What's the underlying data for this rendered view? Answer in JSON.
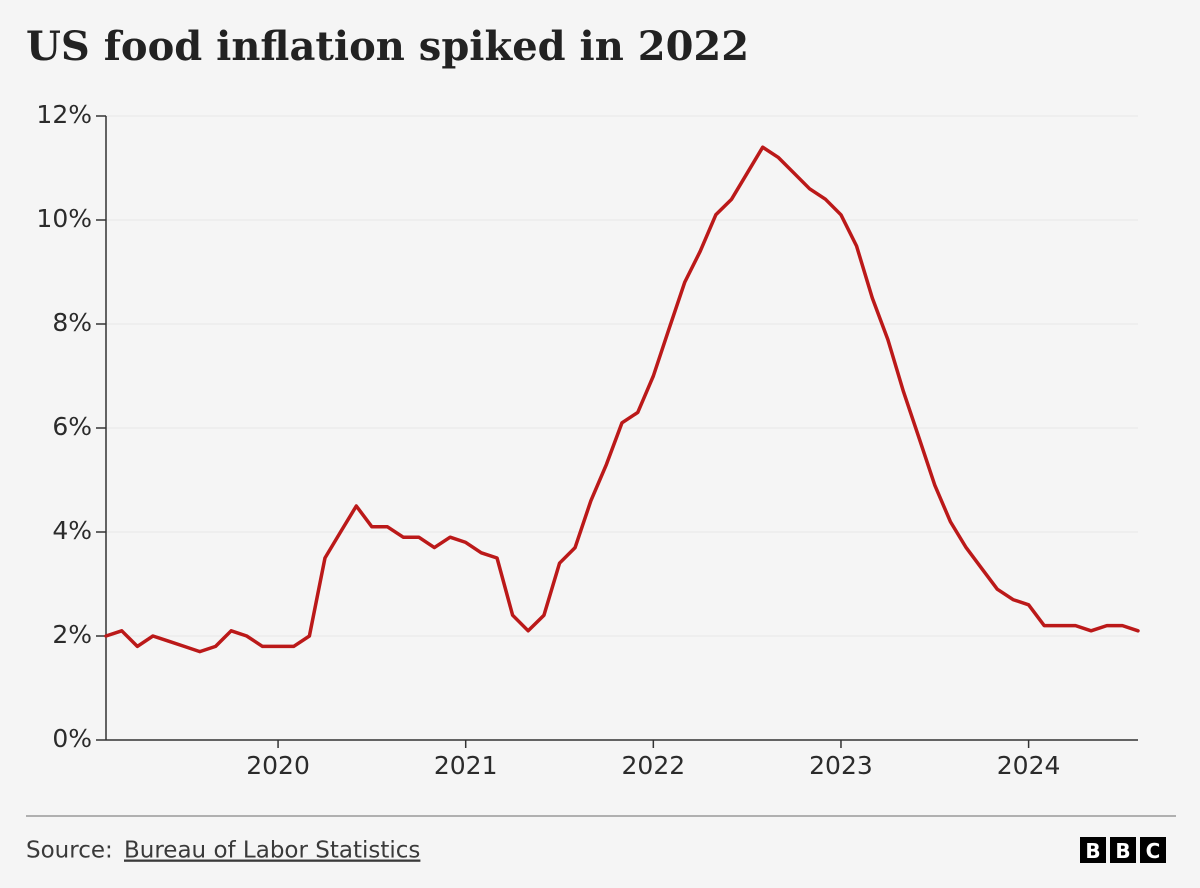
{
  "chart_data": {
    "type": "line",
    "title": "US food inflation spiked in 2022",
    "x": [
      2019.083,
      2019.167,
      2019.25,
      2019.333,
      2019.417,
      2019.5,
      2019.583,
      2019.667,
      2019.75,
      2019.833,
      2019.917,
      2020,
      2020.083,
      2020.167,
      2020.25,
      2020.333,
      2020.417,
      2020.5,
      2020.583,
      2020.667,
      2020.75,
      2020.833,
      2020.917,
      2021,
      2021.083,
      2021.167,
      2021.25,
      2021.333,
      2021.417,
      2021.5,
      2021.583,
      2021.667,
      2021.75,
      2021.833,
      2021.917,
      2022,
      2022.083,
      2022.167,
      2022.25,
      2022.333,
      2022.417,
      2022.5,
      2022.583,
      2022.667,
      2022.75,
      2022.833,
      2022.917,
      2023,
      2023.083,
      2023.167,
      2023.25,
      2023.333,
      2023.417,
      2023.5,
      2023.583,
      2023.667,
      2023.75,
      2023.833,
      2023.917,
      2024,
      2024.083,
      2024.167,
      2024.25,
      2024.333,
      2024.417,
      2024.5,
      2024.583
    ],
    "series": [
      {
        "name": "Food inflation",
        "color": "#bb1919",
        "values": [
          2.0,
          2.1,
          1.8,
          2.0,
          1.9,
          1.8,
          1.7,
          1.8,
          2.1,
          2.0,
          1.8,
          1.8,
          1.8,
          2.0,
          3.5,
          4.0,
          4.5,
          4.1,
          4.1,
          3.9,
          3.9,
          3.7,
          3.9,
          3.8,
          3.6,
          3.5,
          2.4,
          2.1,
          2.4,
          3.4,
          3.7,
          4.6,
          5.3,
          6.1,
          6.3,
          7.0,
          7.9,
          8.8,
          9.4,
          10.1,
          10.4,
          10.9,
          11.4,
          11.2,
          10.9,
          10.6,
          10.4,
          10.1,
          9.5,
          8.5,
          7.7,
          6.7,
          5.8,
          4.9,
          4.2,
          3.7,
          3.3,
          2.9,
          2.7,
          2.6,
          2.2,
          2.2,
          2.2,
          2.1,
          2.2,
          2.2,
          2.1
        ]
      }
    ],
    "xlim": [
      2019.083,
      2024.583
    ],
    "xticks": [
      2020,
      2021,
      2022,
      2023,
      2024
    ],
    "ylim": [
      0,
      12
    ],
    "yticks": [
      {
        "value": 0,
        "label": "0%"
      },
      {
        "value": 2,
        "label": "2%"
      },
      {
        "value": 4,
        "label": "4%"
      },
      {
        "value": 6,
        "label": "6%"
      },
      {
        "value": 8,
        "label": "8%"
      },
      {
        "value": 10,
        "label": "10%"
      },
      {
        "value": 12,
        "label": "12%"
      }
    ],
    "grid": true
  },
  "footer": {
    "source_label": "Source:",
    "source": "Bureau of Labor Statistics",
    "logo": [
      "B",
      "B",
      "C"
    ]
  }
}
